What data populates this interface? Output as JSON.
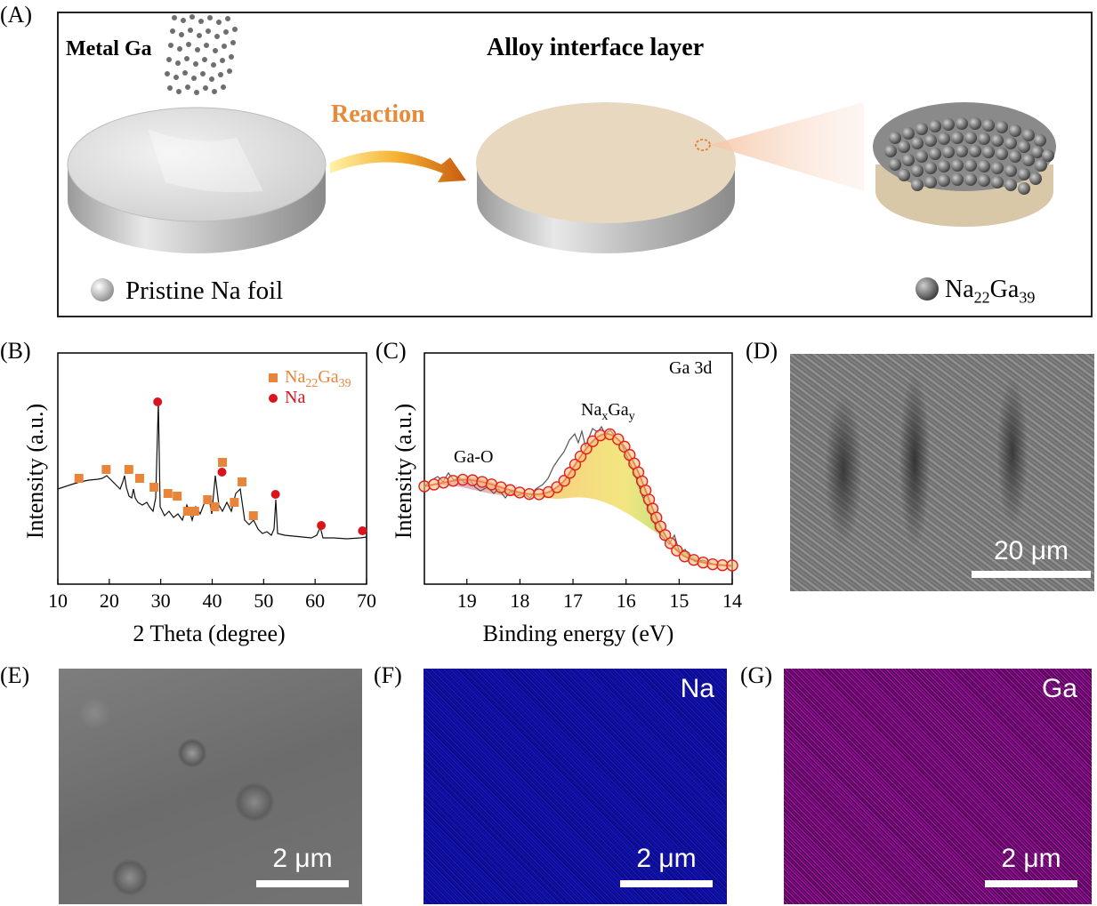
{
  "panels": {
    "A": "(A)",
    "B": "(B)",
    "C": "(C)",
    "D": "(D)",
    "E": "(E)",
    "F": "(F)",
    "G": "(G)"
  },
  "schematic": {
    "metal_ga": "Metal Ga",
    "alloy_title": "Alloy interface layer",
    "reaction": "Reaction",
    "legend_na": "Pristine Na foil",
    "legend_alloy_base": "Na",
    "legend_alloy_sub1": "22",
    "legend_alloy_mid": "Ga",
    "legend_alloy_sub2": "39",
    "colors": {
      "reaction": "#e88a3a",
      "alloy_disk": "#e8d8c0",
      "na_disk": "#d9d9d9"
    }
  },
  "xrd": {
    "ylabel": "Intensity (a.u.)",
    "xlabel": "2 Theta (degree)",
    "legend": [
      {
        "label_base": "Na",
        "sub1": "22",
        "mid": "Ga",
        "sub2": "39",
        "color": "#e8853a",
        "marker": "square"
      },
      {
        "label_base": "Na",
        "color": "#d9141c",
        "marker": "circle"
      }
    ]
  },
  "xps": {
    "ylabel": "Intensity (a.u.)",
    "xlabel": "Binding energy (eV)",
    "title": "Ga 3d",
    "peak1": "Ga-O",
    "peak2_base": "Na",
    "peak2_sub1": "x",
    "peak2_mid": "Ga",
    "peak2_sub2": "y"
  },
  "sem_d": {
    "scale": "20 μm"
  },
  "sem_e": {
    "scale": "2 μm"
  },
  "map_f": {
    "element": "Na",
    "scale": "2 μm",
    "color": "#1a1adc"
  },
  "map_g": {
    "element": "Ga",
    "scale": "2 μm",
    "color": "#c418c8"
  },
  "chart_data": [
    {
      "type": "line",
      "title": "",
      "xlabel": "2 Theta (degree)",
      "ylabel": "Intensity (a.u.)",
      "xlim": [
        10,
        70
      ],
      "xticks": [
        10,
        20,
        30,
        40,
        50,
        60,
        70
      ],
      "series": [
        {
          "name": "Na22Ga39",
          "x": [
            14.1,
            19.4,
            23.8,
            25.9,
            28.7,
            31.4,
            33.2,
            35.2,
            36.6,
            39.1,
            40.5,
            42.0,
            44.3,
            45.8,
            48.0
          ]
        },
        {
          "name": "Na",
          "x": [
            29.4,
            41.9,
            52.3,
            61.2,
            69.2
          ]
        }
      ]
    },
    {
      "type": "line",
      "title": "Ga 3d",
      "xlabel": "Binding energy (eV)",
      "ylabel": "Intensity (a.u.)",
      "xlim": [
        19.8,
        14.0
      ],
      "xticks": [
        19,
        18,
        17,
        16,
        15,
        14
      ],
      "series": [
        {
          "name": "Ga-O",
          "x": [
            19.0
          ]
        },
        {
          "name": "NaxGay",
          "x": [
            16.4
          ]
        }
      ]
    }
  ]
}
